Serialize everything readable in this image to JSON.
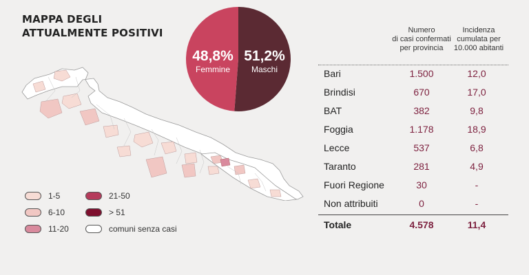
{
  "title": {
    "line1": "MAPPA DEGLI",
    "line2": "ATTUALMENTE POSITIVI"
  },
  "colors": {
    "female": "#c9445f",
    "male": "#5b2a33",
    "bin_1_5": "#f7dcd5",
    "bin_6_10": "#f1c7c3",
    "bin_11_20": "#d98a9d",
    "bin_21_50": "#b53b5b",
    "bin_gt51": "#7e0f2e",
    "no_cases": "#ffffff"
  },
  "legend": [
    {
      "label": "1-5",
      "color": "#f7dcd5"
    },
    {
      "label": "6-10",
      "color": "#f1c7c3"
    },
    {
      "label": "11-20",
      "color": "#d98a9d"
    },
    {
      "label": "21-50",
      "color": "#b53b5b"
    },
    {
      "label": "> 51",
      "color": "#7e0f2e"
    },
    {
      "label": "comuni senza casi",
      "color": "#ffffff"
    }
  ],
  "chart_data": [
    {
      "type": "pie",
      "categories": [
        "Femmine",
        "Maschi"
      ],
      "values": [
        48.8,
        51.2
      ],
      "labels": [
        "48,8%",
        "51,2%"
      ],
      "colors": [
        "#c9445f",
        "#5b2a33"
      ]
    },
    {
      "type": "table",
      "columns": [
        "",
        "Numero di casi confermati per provincia",
        "Incidenza cumulata per 10.000 abitanti"
      ],
      "header_lines": {
        "col1": [
          "Numero",
          "di casi confermati",
          "per provincia"
        ],
        "col2": [
          "Incidenza",
          "cumulata per",
          "10.000 abitanti"
        ]
      },
      "rows": [
        [
          "Bari",
          "1.500",
          "12,0"
        ],
        [
          "Brindisi",
          "670",
          "17,0"
        ],
        [
          "BAT",
          "382",
          "9,8"
        ],
        [
          "Foggia",
          "1.178",
          "18,9"
        ],
        [
          "Lecce",
          "537",
          "6,8"
        ],
        [
          "Taranto",
          "281",
          "4,9"
        ],
        [
          "Fuori Regione",
          "30",
          "-"
        ],
        [
          "Non attribuiti",
          "0",
          "-"
        ]
      ],
      "total": [
        "Totale",
        "4.578",
        "11,4"
      ]
    }
  ]
}
